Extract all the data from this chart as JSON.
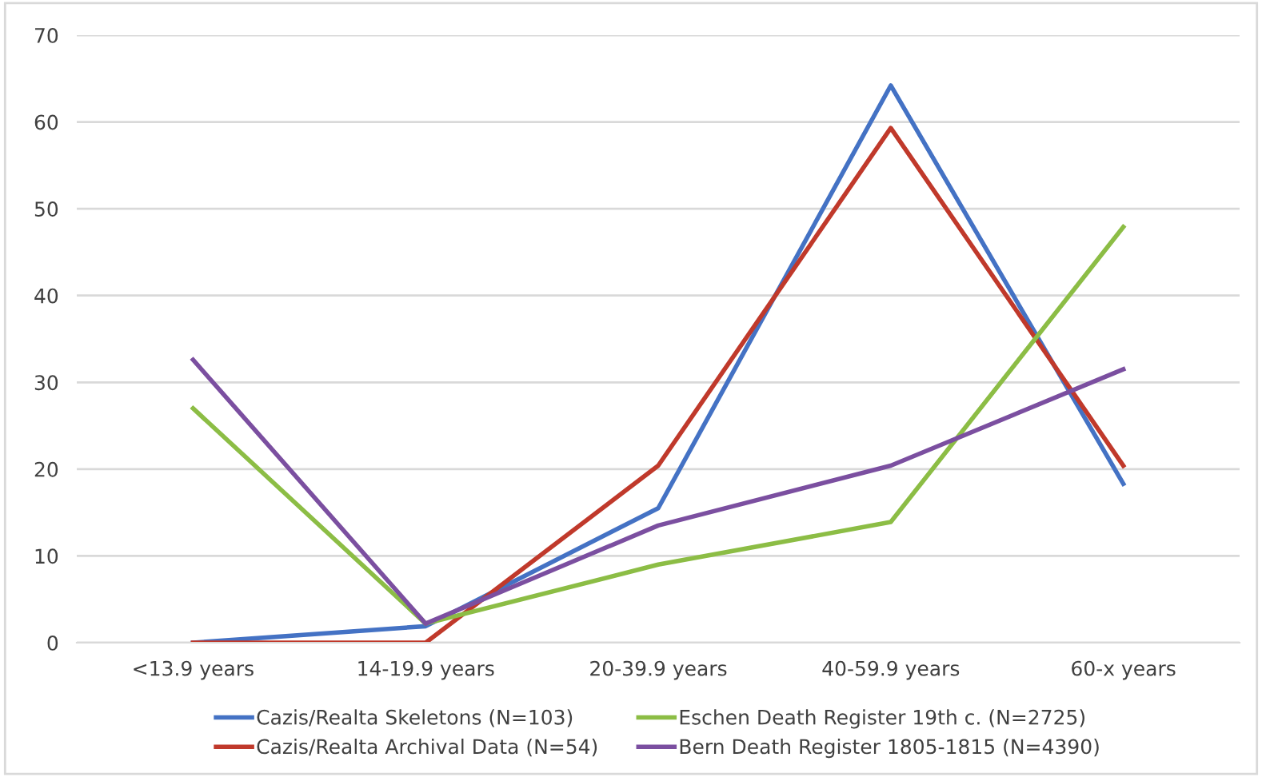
{
  "chart_data": {
    "type": "line",
    "categories": [
      "<13.9 years",
      "14-19.9 years",
      "20-39.9 years",
      "40-59.9 years",
      "60-x years"
    ],
    "series": [
      {
        "name": "Cazis/Realta Skeletons (N=103)",
        "color": "#4472c4",
        "values": [
          0,
          1.9,
          15.5,
          64.2,
          18.3
        ]
      },
      {
        "name": "Cazis/Realta Archival Data (N=54)",
        "color": "#c0392b",
        "values": [
          0,
          0,
          20.4,
          59.3,
          20.4
        ]
      },
      {
        "name": "Eschen Death Register 19th c. (N=2725)",
        "color": "#8cbd45",
        "values": [
          27,
          2.2,
          9,
          13.9,
          47.9
        ]
      },
      {
        "name": "Bern Death Register 1805-1815 (N=4390)",
        "color": "#7b4fa0",
        "values": [
          32.6,
          2.2,
          13.5,
          20.4,
          31.5
        ]
      }
    ],
    "ylim": [
      0,
      70
    ],
    "yticks": [
      0,
      10,
      20,
      30,
      40,
      50,
      60,
      70
    ],
    "grid": "y",
    "legend": "bottom",
    "marker": "none",
    "line_style": "solid"
  }
}
